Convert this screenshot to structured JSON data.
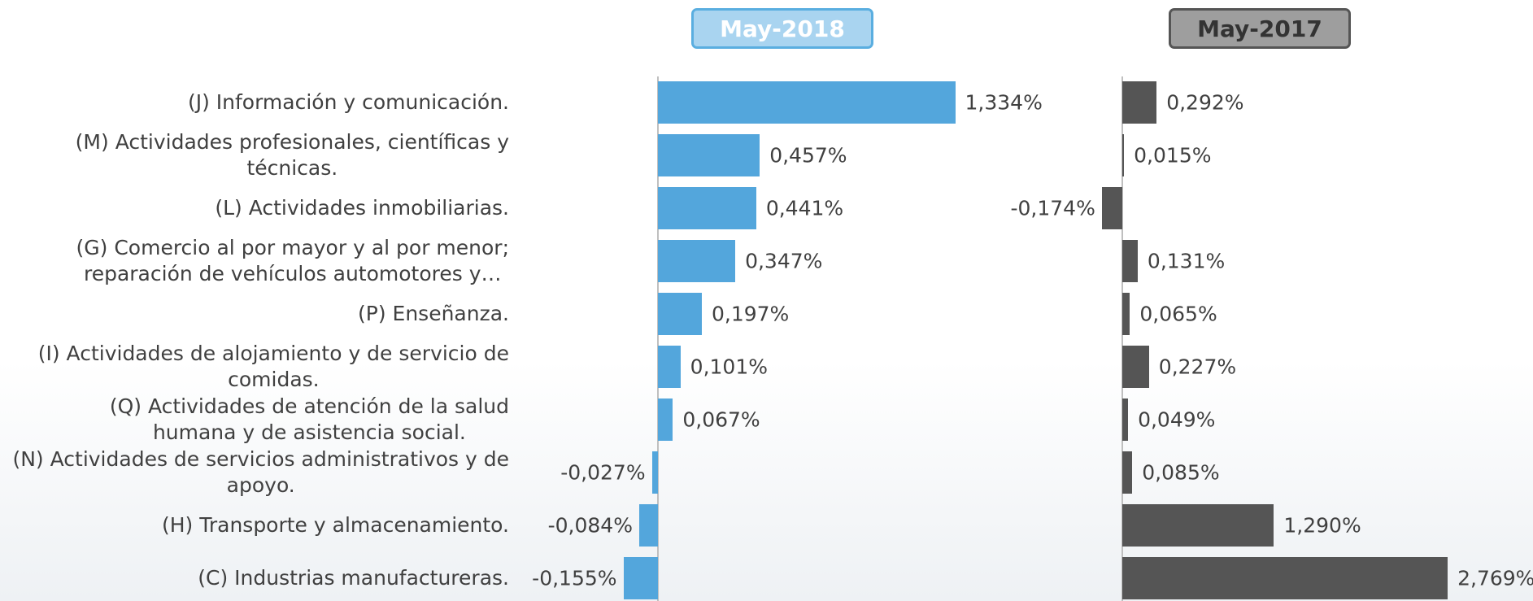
{
  "chart_data": [
    {
      "type": "bar",
      "title": "May-2018",
      "color": "#53a6dc",
      "categories": [
        "(J) Información y comunicación.",
        "(M) Actividades profesionales, científicas y\ntécnicas.",
        "(L) Actividades inmobiliarias.",
        "(G) Comercio al por mayor y al por menor;\nreparación de vehículos automotores y…",
        "(P) Enseñanza.",
        "(I) Actividades de alojamiento y de servicio de\ncomidas.",
        "(Q) Actividades de atención de la salud\nhumana y de asistencia social.",
        "(N) Actividades de servicios administrativos y de\napoyo.",
        "(H) Transporte y almacenamiento.",
        "(C) Industrias manufactureras."
      ],
      "values": [
        1.334,
        0.457,
        0.441,
        0.347,
        0.197,
        0.101,
        0.067,
        -0.027,
        -0.084,
        -0.155
      ],
      "value_labels": [
        "1,334%",
        "0,457%",
        "0,441%",
        "0,347%",
        "0,197%",
        "0,101%",
        "0,067%",
        "-0,027%",
        "-0,084%",
        "-0,155%"
      ]
    },
    {
      "type": "bar",
      "title": "May-2017",
      "color": "#555555",
      "values": [
        0.292,
        0.015,
        -0.174,
        0.131,
        0.065,
        0.227,
        0.049,
        0.085,
        1.29,
        2.769
      ],
      "value_labels": [
        "0,292%",
        "0,015%",
        "-0,174%",
        "0,131%",
        "0,065%",
        "0,227%",
        "0,049%",
        "0,085%",
        "1,290%",
        "2,769%"
      ]
    }
  ]
}
